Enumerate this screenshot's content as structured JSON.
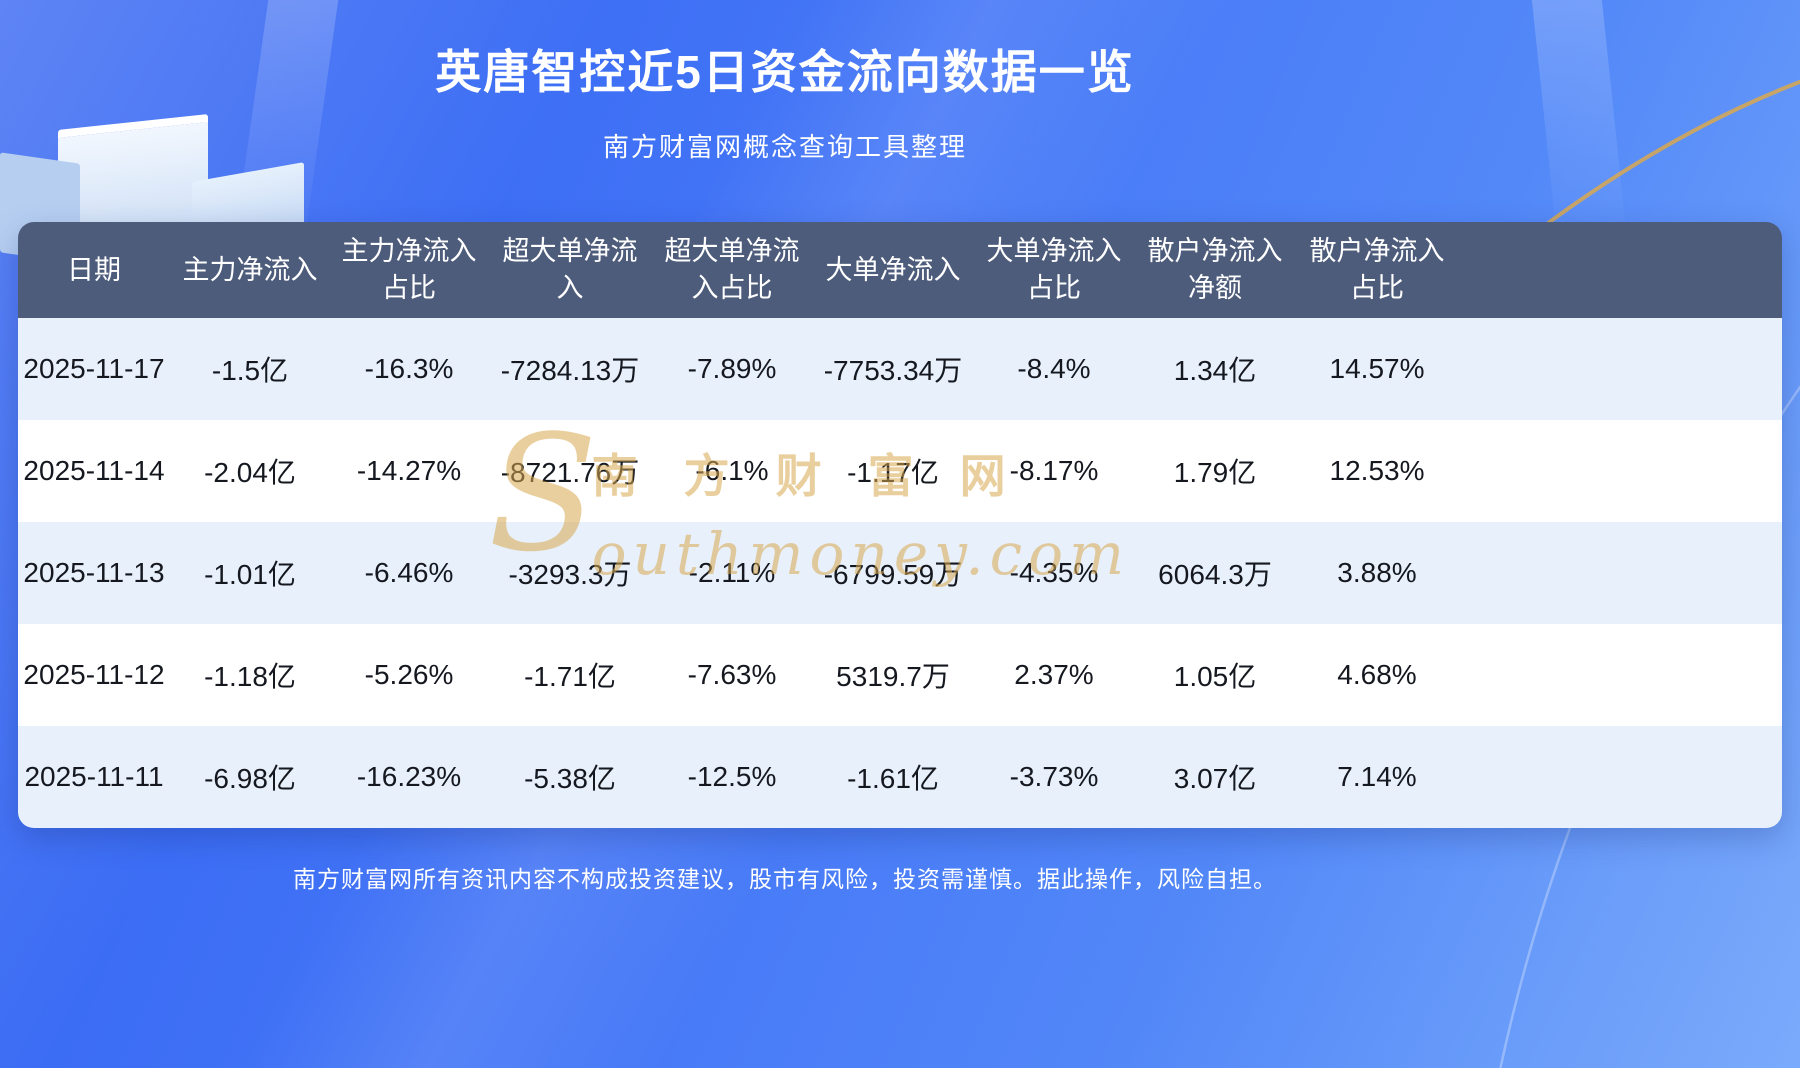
{
  "title": "英唐智控近5日资金流向数据一览",
  "subtitle": "南方财富网概念查询工具整理",
  "watermark": {
    "initial": "S",
    "cn": "南方财富网",
    "en": "outhmoney.com"
  },
  "footer": "南方财富网所有资讯内容不构成投资建议，股市有风险，投资需谨慎。据此操作，风险自担。",
  "chart_data": {
    "type": "table",
    "title": "英唐智控近5日资金流向数据一览",
    "subtitle": "南方财富网概念查询工具整理",
    "columns": [
      "日期",
      "主力净流入",
      "主力净流入占比",
      "超大单净流入",
      "超大单净流入占比",
      "大单净流入",
      "大单净流入占比",
      "散户净流入净额",
      "散户净流入占比"
    ],
    "rows": [
      [
        "2025-11-17",
        "-1.5亿",
        "-16.3%",
        "-7284.13万",
        "-7.89%",
        "-7753.34万",
        "-8.4%",
        "1.34亿",
        "14.57%"
      ],
      [
        "2025-11-14",
        "-2.04亿",
        "-14.27%",
        "-8721.76万",
        "-6.1%",
        "-1.17亿",
        "-8.17%",
        "1.79亿",
        "12.53%"
      ],
      [
        "2025-11-13",
        "-1.01亿",
        "-6.46%",
        "-3293.3万",
        "-2.11%",
        "-6799.59万",
        "-4.35%",
        "6064.3万",
        "3.88%"
      ],
      [
        "2025-11-12",
        "-1.18亿",
        "-5.26%",
        "-1.71亿",
        "-7.63%",
        "5319.7万",
        "2.37%",
        "1.05亿",
        "4.68%"
      ],
      [
        "2025-11-11",
        "-6.98亿",
        "-16.23%",
        "-5.38亿",
        "-12.5%",
        "-1.61亿",
        "-3.73%",
        "3.07亿",
        "7.14%"
      ]
    ]
  },
  "colors": {
    "background_blue": "#4678f7",
    "header_bg": "#4e5c7c",
    "row_alt": "#e8f0fb",
    "row_base": "#ffffff",
    "accent_gold": "#d9a850",
    "title_color": "#ffffff"
  }
}
